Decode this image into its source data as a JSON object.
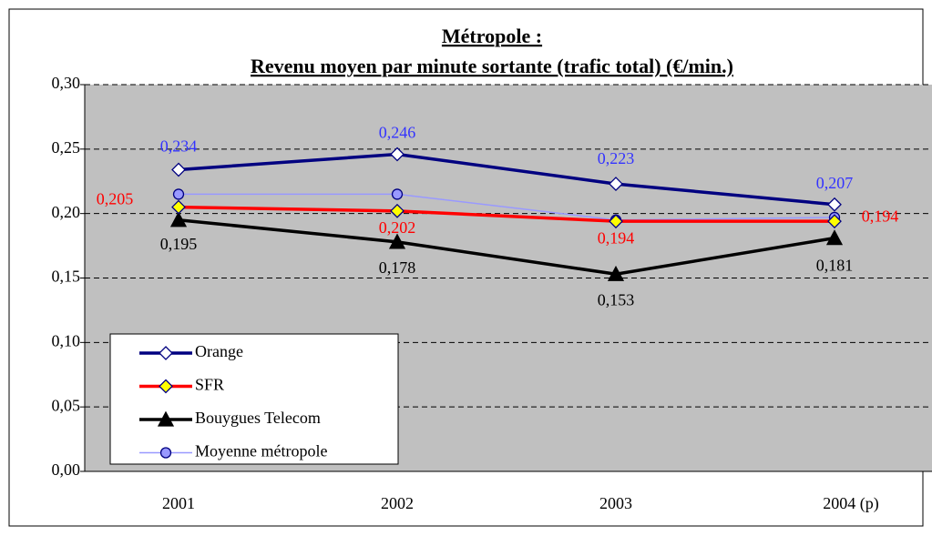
{
  "chart_data": {
    "type": "line",
    "title": "Métropole :",
    "subtitle": "Revenu moyen par minute sortante (trafic total) (€/min.)",
    "categories": [
      "2001",
      "2002",
      "2003",
      "2004 (p)"
    ],
    "series": [
      {
        "name": "Orange",
        "color": "#000080",
        "label_color": "#3333ff",
        "marker": "diamond",
        "marker_fill": "#ffffff",
        "values": [
          0.234,
          0.246,
          0.223,
          0.207
        ],
        "value_labels": [
          "0,234",
          "0,246",
          "0,223",
          "0,207"
        ]
      },
      {
        "name": "SFR",
        "color": "#ff0000",
        "label_color": "#ff0000",
        "marker": "diamond",
        "marker_fill": "#ffff00",
        "values": [
          0.205,
          0.202,
          0.194,
          0.194
        ],
        "value_labels": [
          "0,205",
          "0,202",
          "0,194",
          "0,194"
        ]
      },
      {
        "name": "Bouygues Telecom",
        "color": "#000000",
        "label_color": "#000000",
        "marker": "triangle",
        "marker_fill": "#000000",
        "values": [
          0.195,
          0.178,
          0.153,
          0.181
        ],
        "value_labels": [
          "0,195",
          "0,178",
          "0,153",
          "0,181"
        ]
      },
      {
        "name": "Moyenne métropole",
        "color": "#9999ff",
        "marker": "circle",
        "marker_fill": "#9999ff",
        "values": [
          0.215,
          0.215,
          0.195,
          0.197
        ]
      }
    ],
    "ylim": [
      0,
      0.3
    ],
    "yticks": [
      {
        "value": 0,
        "label": "0,00"
      },
      {
        "value": 0.05,
        "label": "0,05"
      },
      {
        "value": 0.1,
        "label": "0,10"
      },
      {
        "value": 0.15,
        "label": "0,15"
      },
      {
        "value": 0.2,
        "label": "0,20"
      },
      {
        "value": 0.25,
        "label": "0,25"
      },
      {
        "value": 0.3,
        "label": "0,30"
      }
    ],
    "grid": true,
    "legend": "lower left"
  }
}
